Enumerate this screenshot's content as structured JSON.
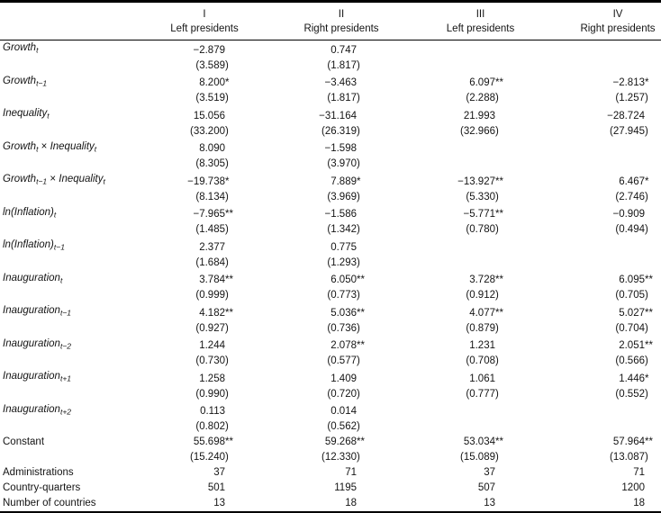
{
  "table": {
    "columns": [
      {
        "numeral": "I",
        "label": "Left presidents"
      },
      {
        "numeral": "II",
        "label": "Right presidents"
      },
      {
        "numeral": "III",
        "label": "Left presidents"
      },
      {
        "numeral": "IV",
        "label": "Right presidents"
      }
    ],
    "rows": [
      {
        "label": [
          {
            "text": "Growth",
            "italic": true
          },
          {
            "text": "t",
            "italic": true,
            "sub": true
          }
        ],
        "coef": [
          "−2.879",
          "0.747",
          "",
          ""
        ],
        "se": [
          "(3.589)",
          "(1.817)",
          "",
          ""
        ]
      },
      {
        "label": [
          {
            "text": "Growth",
            "italic": true
          },
          {
            "text": "t−1",
            "italic": true,
            "sub": true
          }
        ],
        "coef": [
          "8.200*",
          "−3.463",
          "6.097**",
          "−2.813*"
        ],
        "se": [
          "(3.519)",
          "(1.817)",
          "(2.288)",
          "(1.257)"
        ]
      },
      {
        "label": [
          {
            "text": "Inequality",
            "italic": true
          },
          {
            "text": "t",
            "italic": true,
            "sub": true
          }
        ],
        "coef": [
          "15.056",
          "−31.164",
          "21.993",
          "−28.724"
        ],
        "se": [
          "(33.200)",
          "(26.319)",
          "(32.966)",
          "(27.945)"
        ]
      },
      {
        "label": [
          {
            "text": "Growth",
            "italic": true
          },
          {
            "text": "t",
            "italic": true,
            "sub": true
          },
          {
            "text": " × "
          },
          {
            "text": "Inequality",
            "italic": true
          },
          {
            "text": "t",
            "italic": true,
            "sub": true
          }
        ],
        "coef": [
          "8.090",
          "−1.598",
          "",
          ""
        ],
        "se": [
          "(8.305)",
          "(3.970)",
          "",
          ""
        ]
      },
      {
        "label": [
          {
            "text": "Growth",
            "italic": true
          },
          {
            "text": "t−1",
            "italic": true,
            "sub": true
          },
          {
            "text": " × "
          },
          {
            "text": "Inequality",
            "italic": true
          },
          {
            "text": "t",
            "italic": true,
            "sub": true
          }
        ],
        "coef": [
          "−19.738*",
          "7.889*",
          "−13.927**",
          "6.467*"
        ],
        "se": [
          "(8.134)",
          "(3.969)",
          "(5.330)",
          "(2.746)"
        ]
      },
      {
        "label": [
          {
            "text": "ln(Inflation)",
            "italic": true
          },
          {
            "text": "t",
            "italic": true,
            "sub": true
          }
        ],
        "coef": [
          "−7.965**",
          "−1.586",
          "−5.771**",
          "−0.909"
        ],
        "se": [
          "(1.485)",
          "(1.342)",
          "(0.780)",
          "(0.494)"
        ]
      },
      {
        "label": [
          {
            "text": "ln(Inflation)",
            "italic": true
          },
          {
            "text": "t−1",
            "italic": true,
            "sub": true
          }
        ],
        "coef": [
          "2.377",
          "0.775",
          "",
          ""
        ],
        "se": [
          "(1.684)",
          "(1.293)",
          "",
          ""
        ]
      },
      {
        "label": [
          {
            "text": "Inauguration",
            "italic": true
          },
          {
            "text": "t",
            "italic": true,
            "sub": true
          }
        ],
        "coef": [
          "3.784**",
          "6.050**",
          "3.728**",
          "6.095**"
        ],
        "se": [
          "(0.999)",
          "(0.773)",
          "(0.912)",
          "(0.705)"
        ]
      },
      {
        "label": [
          {
            "text": "Inauguration",
            "italic": true
          },
          {
            "text": "t−1",
            "italic": true,
            "sub": true
          }
        ],
        "coef": [
          "4.182**",
          "5.036**",
          "4.077**",
          "5.027**"
        ],
        "se": [
          "(0.927)",
          "(0.736)",
          "(0.879)",
          "(0.704)"
        ]
      },
      {
        "label": [
          {
            "text": "Inauguration",
            "italic": true
          },
          {
            "text": "t−2",
            "italic": true,
            "sub": true
          }
        ],
        "coef": [
          "1.244",
          "2.078**",
          "1.231",
          "2.051**"
        ],
        "se": [
          "(0.730)",
          "(0.577)",
          "(0.708)",
          "(0.566)"
        ]
      },
      {
        "label": [
          {
            "text": "Inauguration",
            "italic": true
          },
          {
            "text": "t+1",
            "italic": true,
            "sub": true
          }
        ],
        "coef": [
          "1.258",
          "1.409",
          "1.061",
          "1.446*"
        ],
        "se": [
          "(0.990)",
          "(0.720)",
          "(0.777)",
          "(0.552)"
        ]
      },
      {
        "label": [
          {
            "text": "Inauguration",
            "italic": true
          },
          {
            "text": "t+2",
            "italic": true,
            "sub": true
          }
        ],
        "coef": [
          "0.113",
          "0.014",
          "",
          ""
        ],
        "se": [
          "(0.802)",
          "(0.562)",
          "",
          ""
        ]
      },
      {
        "label": [
          {
            "text": "Constant"
          }
        ],
        "coef": [
          "55.698**",
          "59.268**",
          "53.034**",
          "57.964**"
        ],
        "se": [
          "(15.240)",
          "(12.330)",
          "(15.089)",
          "(13.087)"
        ]
      },
      {
        "label": [
          {
            "text": "Administrations"
          }
        ],
        "stats": [
          "37",
          "71",
          "37",
          "71"
        ]
      },
      {
        "label": [
          {
            "text": "Country-quarters"
          }
        ],
        "stats": [
          "501",
          "1195",
          "507",
          "1200"
        ]
      },
      {
        "label": [
          {
            "text": "Number of countries"
          }
        ],
        "stats": [
          "13",
          "18",
          "13",
          "18"
        ]
      }
    ]
  }
}
